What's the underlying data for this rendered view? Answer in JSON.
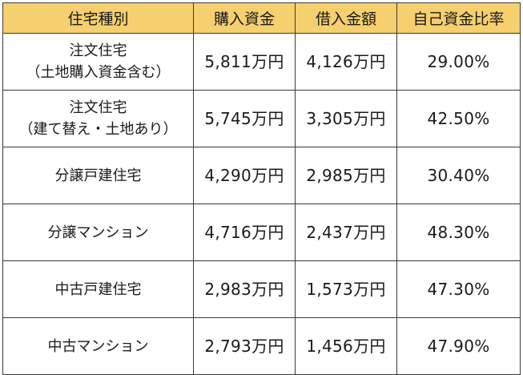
{
  "table": {
    "headers": [
      "住宅種別",
      "購入資金",
      "借入金額",
      "自己資金比率"
    ],
    "header_color": "#f6cf6e",
    "rows": [
      {
        "type_line1": "注文住宅",
        "type_line2": "（土地購入資金含む）",
        "purchase": "5,811万円",
        "loan": "4,126万円",
        "ratio": "29.00%"
      },
      {
        "type_line1": "注文住宅",
        "type_line2": "（建て替え・土地あり）",
        "purchase": "5,745万円",
        "loan": "3,305万円",
        "ratio": "42.50%"
      },
      {
        "type_line1": "分譲戸建住宅",
        "type_line2": "",
        "purchase": "4,290万円",
        "loan": "2,985万円",
        "ratio": "30.40%"
      },
      {
        "type_line1": "分譲マンション",
        "type_line2": "",
        "purchase": "4,716万円",
        "loan": "2,437万円",
        "ratio": "48.30%"
      },
      {
        "type_line1": "中古戸建住宅",
        "type_line2": "",
        "purchase": "2,983万円",
        "loan": "1,573万円",
        "ratio": "47.30%"
      },
      {
        "type_line1": "中古マンション",
        "type_line2": "",
        "purchase": "2,793万円",
        "loan": "1,456万円",
        "ratio": "47.90%"
      }
    ]
  }
}
